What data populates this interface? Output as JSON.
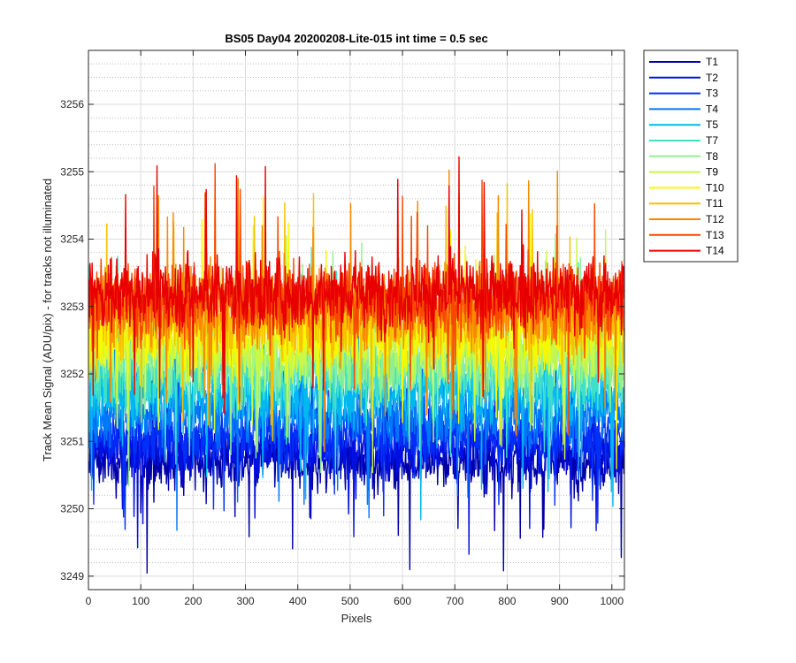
{
  "chart_data": {
    "type": "line",
    "title": "BS05 Day04 20200208-Lite-015 int time = 0.5 sec",
    "xlabel": "Pixels",
    "ylabel": "Track Mean Signal (ADU/pix) - for tracks not illuminated",
    "xlim": [
      0,
      1024
    ],
    "ylim": [
      3248.8,
      3256.8
    ],
    "x_ticks": [
      0,
      100,
      200,
      300,
      400,
      500,
      600,
      700,
      800,
      900,
      1000
    ],
    "x_tick_labels": [
      "0",
      "100",
      "200",
      "300",
      "400",
      "500",
      "600",
      "700",
      "800",
      "900",
      "1000"
    ],
    "y_ticks": [
      3249,
      3250,
      3251,
      3252,
      3253,
      3254,
      3255,
      3256
    ],
    "y_tick_labels": [
      "3249",
      "3250",
      "3251",
      "3252",
      "3253",
      "3254",
      "3255",
      "3256"
    ],
    "grid": "major and minor",
    "legend_position": "outside top-right",
    "x_count": 1024,
    "series": [
      {
        "name": "T1",
        "color": "#0000a8",
        "mean": 3250.7,
        "noise": 0.55
      },
      {
        "name": "T2",
        "color": "#0010e0",
        "mean": 3250.9,
        "noise": 0.55
      },
      {
        "name": "T3",
        "color": "#0030f8",
        "mean": 3251.1,
        "noise": 0.55
      },
      {
        "name": "T4",
        "color": "#0078f8",
        "mean": 3251.4,
        "noise": 0.6
      },
      {
        "name": "T5",
        "color": "#00b8f0",
        "mean": 3251.7,
        "noise": 0.65
      },
      {
        "name": "T7",
        "color": "#40e0c8",
        "mean": 3252.0,
        "noise": 0.65
      },
      {
        "name": "T8",
        "color": "#90f090",
        "mean": 3252.2,
        "noise": 0.65
      },
      {
        "name": "T9",
        "color": "#c8f848",
        "mean": 3252.4,
        "noise": 0.65
      },
      {
        "name": "T10",
        "color": "#f8f800",
        "mean": 3252.6,
        "noise": 0.7
      },
      {
        "name": "T11",
        "color": "#f8c000",
        "mean": 3252.8,
        "noise": 0.7
      },
      {
        "name": "T12",
        "color": "#f88800",
        "mean": 3253.0,
        "noise": 0.75
      },
      {
        "name": "T13",
        "color": "#f84800",
        "mean": 3253.1,
        "noise": 0.7
      },
      {
        "name": "T14",
        "color": "#e80000",
        "mean": 3253.2,
        "noise": 0.7
      }
    ]
  }
}
